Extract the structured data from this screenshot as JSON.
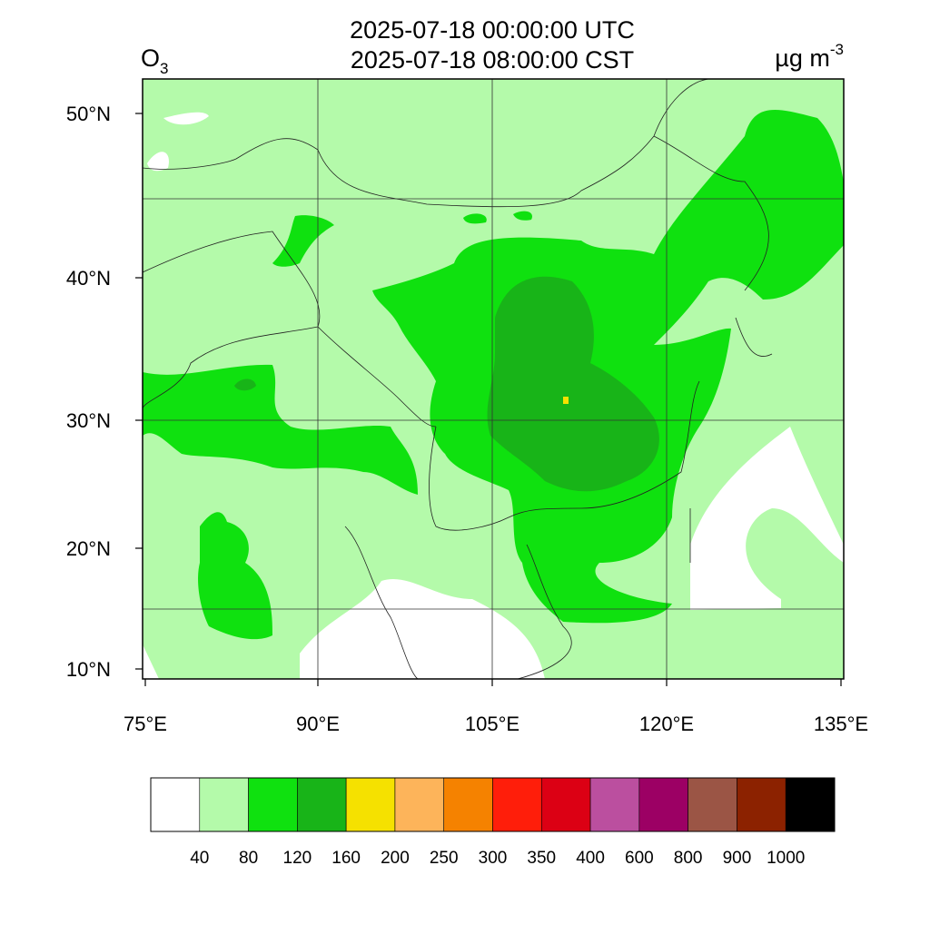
{
  "header": {
    "title_utc": "2025-07-18 00:00:00 UTC",
    "title_local": "2025-07-18 08:00:00 CST",
    "variable": "O",
    "variable_subscript": "3",
    "units": "µg m",
    "units_superscript": "-3"
  },
  "map": {
    "lat_labels": [
      "50°N",
      "40°N",
      "30°N",
      "20°N",
      "10°N"
    ],
    "lon_labels": [
      "75°E",
      "90°E",
      "105°E",
      "120°E",
      "135°E"
    ]
  },
  "colorbar": {
    "colors": [
      "#ffffff",
      "#b4faaa",
      "#0fe10f",
      "#18b418",
      "#f5e100",
      "#fdb45a",
      "#f58200",
      "#ff1e0a",
      "#dc0014",
      "#bb4f9f",
      "#9c0064",
      "#9b5545",
      "#8c2200",
      "#000000"
    ],
    "labels": [
      "40",
      "80",
      "120",
      "160",
      "200",
      "250",
      "300",
      "350",
      "400",
      "600",
      "800",
      "900",
      "1000"
    ]
  }
}
